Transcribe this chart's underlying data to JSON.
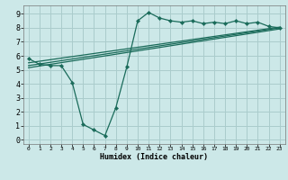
{
  "title": "",
  "xlabel": "Humidex (Indice chaleur)",
  "ylabel": "",
  "bg_color": "#cce8e8",
  "grid_color": "#aacccc",
  "line_color": "#1a6b5a",
  "x_ticks": [
    0,
    1,
    2,
    3,
    4,
    5,
    6,
    7,
    8,
    9,
    10,
    11,
    12,
    13,
    14,
    15,
    16,
    17,
    18,
    19,
    20,
    21,
    22,
    23
  ],
  "y_ticks": [
    0,
    1,
    2,
    3,
    4,
    5,
    6,
    7,
    8,
    9
  ],
  "ylim": [
    -0.3,
    9.6
  ],
  "xlim": [
    -0.5,
    23.5
  ],
  "line1_x": [
    0,
    1,
    2,
    3,
    4,
    5,
    6,
    7,
    8,
    9,
    10,
    11,
    12,
    13,
    14,
    15,
    16,
    17,
    18,
    19,
    20,
    21,
    22,
    23
  ],
  "line1_y": [
    5.8,
    5.4,
    5.3,
    5.3,
    4.1,
    1.1,
    0.7,
    0.3,
    2.3,
    5.2,
    8.5,
    9.1,
    8.7,
    8.5,
    8.4,
    8.5,
    8.3,
    8.4,
    8.3,
    8.5,
    8.3,
    8.4,
    8.1,
    8.0
  ],
  "line2_x": [
    0,
    23
  ],
  "line2_y": [
    5.5,
    8.05
  ],
  "line3_x": [
    0,
    23
  ],
  "line3_y": [
    5.3,
    8.0
  ],
  "line4_x": [
    0,
    23
  ],
  "line4_y": [
    5.15,
    7.92
  ]
}
